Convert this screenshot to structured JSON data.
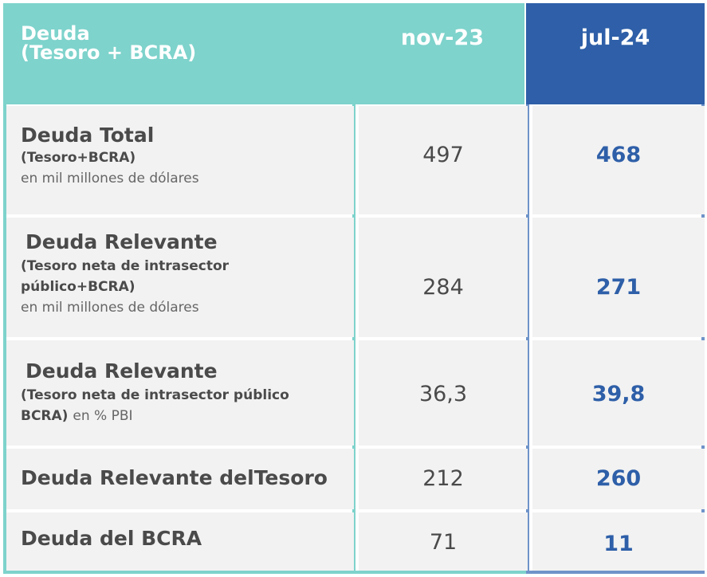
{
  "header": {
    "title_line1": "Deuda",
    "title_line2": "(Tesoro + BCRA)",
    "col1": "nov-23",
    "col2": "jul-24"
  },
  "rows": [
    {
      "label": "Deuda Total",
      "sub": "(Tesoro+BCRA)",
      "note": "en mil millones de dólares",
      "nov23": "497",
      "jul24": "468"
    },
    {
      "label": "Deuda Relevante",
      "sub_line1": "(Tesoro neta de intrasector",
      "sub_line2": "público+BCRA)",
      "note": "en mil millones de dólares",
      "nov23": "284",
      "jul24": "271"
    },
    {
      "label": "Deuda Relevante",
      "sub_line1": "(Tesoro neta de intrasector público",
      "sub_line2": "BCRA)",
      "note": "en % PBI",
      "nov23": "36,3",
      "jul24": "39,8"
    },
    {
      "label": "Deuda Relevante delTesoro",
      "nov23": "212",
      "jul24": "260"
    },
    {
      "label": "Deuda del BCRA",
      "nov23": "71",
      "jul24": "11"
    }
  ],
  "colors": {
    "header_teal": "#7ed3cc",
    "header_blue": "#2e5fa8",
    "cell_bg": "#f2f2f2",
    "highlight_value": "#2e5fa8"
  }
}
